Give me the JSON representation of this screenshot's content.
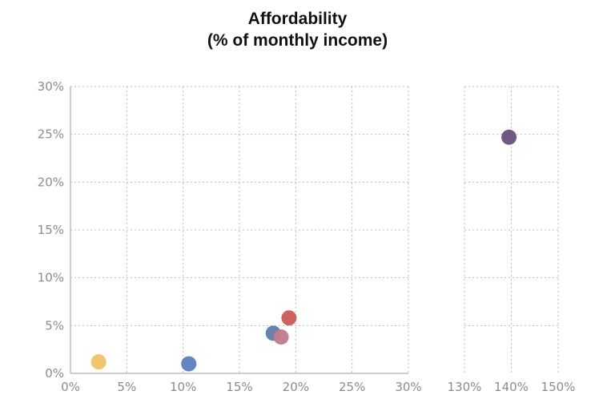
{
  "chart_data": {
    "type": "scatter",
    "title_lines": [
      "Affordability",
      "(% of monthly income)"
    ],
    "xlabel": "",
    "ylabel": "",
    "x_axis_break": true,
    "x_panels": [
      {
        "range": [
          0,
          30
        ],
        "ticks": [
          0,
          5,
          10,
          15,
          20,
          25,
          30
        ],
        "tick_labels": [
          "0%",
          "5%",
          "10%",
          "15%",
          "20%",
          "25%",
          "30%"
        ]
      },
      {
        "range": [
          130,
          150
        ],
        "ticks": [
          130,
          140,
          150
        ],
        "tick_labels": [
          "130%",
          "140%",
          "150%"
        ]
      }
    ],
    "y_range": [
      0,
      30
    ],
    "y_ticks": [
      0,
      5,
      10,
      15,
      20,
      25,
      30
    ],
    "y_tick_labels": [
      "0%",
      "5%",
      "10%",
      "15%",
      "20%",
      "25%",
      "30%"
    ],
    "grid": true,
    "legend": "none",
    "points": [
      {
        "x": 2.5,
        "y": 1.2,
        "color": "#f0c266"
      },
      {
        "x": 10.5,
        "y": 1.0,
        "color": "#5b7fc0"
      },
      {
        "x": 18.0,
        "y": 4.2,
        "color": "#5f7ca6"
      },
      {
        "x": 18.7,
        "y": 3.8,
        "color": "#c07a8e"
      },
      {
        "x": 19.4,
        "y": 5.8,
        "color": "#c95a5a"
      },
      {
        "x": 139.5,
        "y": 24.7,
        "color": "#6b4d7a"
      }
    ]
  }
}
